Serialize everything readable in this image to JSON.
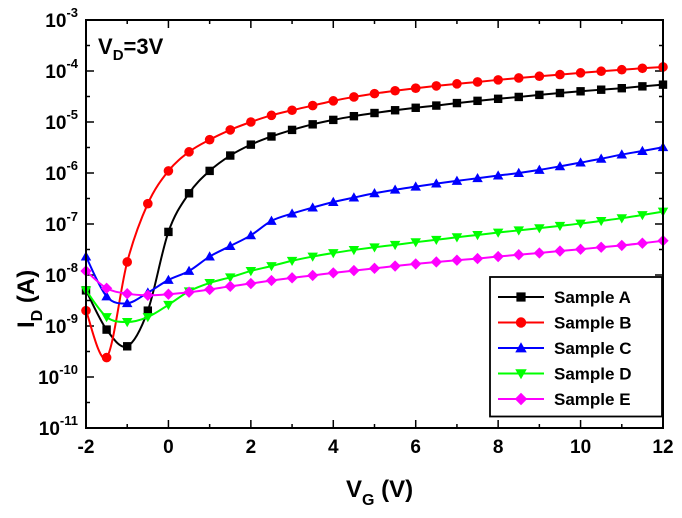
{
  "chart_data": {
    "type": "line",
    "yscale": "log",
    "xlabel": "V",
    "xlabel_sub": "G",
    "xlabel_unit": " (V)",
    "ylabel": "I",
    "ylabel_sub": "D",
    "ylabel_unit": " (A)",
    "annotation": {
      "main": "V",
      "sub": "D",
      "rest": "=3V"
    },
    "xlim": [
      -2,
      12
    ],
    "ylim": [
      1e-11,
      0.001
    ],
    "xticks": [
      -2,
      0,
      2,
      4,
      6,
      8,
      10,
      12
    ],
    "xtick_labels": [
      "-2",
      "0",
      "2",
      "4",
      "6",
      "8",
      "10",
      "12"
    ],
    "yticks": [
      {
        "base": "10",
        "exp": "-11"
      },
      {
        "base": "10",
        "exp": "-10"
      },
      {
        "base": "10",
        "exp": "-9"
      },
      {
        "base": "10",
        "exp": "-8"
      },
      {
        "base": "10",
        "exp": "-7"
      },
      {
        "base": "10",
        "exp": "-6"
      },
      {
        "base": "10",
        "exp": "-5"
      },
      {
        "base": "10",
        "exp": "-4"
      },
      {
        "base": "10",
        "exp": "-3"
      }
    ],
    "grid": false,
    "legend_position": "bottom-right",
    "x": [
      -2.0,
      -1.5,
      -1.0,
      -0.5,
      0.0,
      0.5,
      1.0,
      1.5,
      2.0,
      2.5,
      3.0,
      3.5,
      4.0,
      4.5,
      5.0,
      5.5,
      6.0,
      6.5,
      7.0,
      7.5,
      8.0,
      8.5,
      9.0,
      9.5,
      10.0,
      10.5,
      11.0,
      11.5,
      12.0
    ],
    "series": [
      {
        "name": "Sample A",
        "color": "#000000",
        "marker": "square",
        "values": [
          5e-09,
          8.5e-10,
          4e-10,
          2e-09,
          7e-08,
          4e-07,
          1.1e-06,
          2.2e-06,
          3.6e-06,
          5.2e-06,
          7e-06,
          9e-06,
          1.1e-05,
          1.3e-05,
          1.5e-05,
          1.7e-05,
          1.9e-05,
          2.1e-05,
          2.35e-05,
          2.6e-05,
          2.85e-05,
          3.1e-05,
          3.4e-05,
          3.7e-05,
          4e-05,
          4.3e-05,
          4.6e-05,
          5e-05,
          5.4e-05
        ]
      },
      {
        "name": "Sample B",
        "color": "#ff0000",
        "marker": "circle",
        "values": [
          2e-09,
          2.4e-10,
          1.8e-08,
          2.5e-07,
          1.1e-06,
          2.6e-06,
          4.5e-06,
          7e-06,
          1e-05,
          1.35e-05,
          1.7e-05,
          2.1e-05,
          2.6e-05,
          3.1e-05,
          3.6e-05,
          4.1e-05,
          4.6e-05,
          5.1e-05,
          5.6e-05,
          6.1e-05,
          6.7e-05,
          7.3e-05,
          7.9e-05,
          8.5e-05,
          9.2e-05,
          9.9e-05,
          0.000106,
          0.000113,
          0.00012
        ]
      },
      {
        "name": "Sample C",
        "color": "#0000ff",
        "marker": "triangle-up",
        "values": [
          2.3e-08,
          3.8e-09,
          2.8e-09,
          4.5e-09,
          8e-09,
          1.2e-08,
          2.3e-08,
          3.7e-08,
          6e-08,
          1.15e-07,
          1.6e-07,
          2.1e-07,
          2.7e-07,
          3.3e-07,
          4e-07,
          4.7e-07,
          5.4e-07,
          6.2e-07,
          7e-07,
          7.9e-07,
          8.9e-07,
          1e-06,
          1.15e-06,
          1.35e-06,
          1.6e-06,
          1.9e-06,
          2.3e-06,
          2.7e-06,
          3.2e-06
        ]
      },
      {
        "name": "Sample D",
        "color": "#00ff00",
        "marker": "triangle-down",
        "values": [
          5e-09,
          1.5e-09,
          1.2e-09,
          1.5e-09,
          2.6e-09,
          4.8e-09,
          7e-09,
          9e-09,
          1.2e-08,
          1.5e-08,
          1.9e-08,
          2.3e-08,
          2.7e-08,
          3.1e-08,
          3.5e-08,
          3.9e-08,
          4.4e-08,
          4.9e-08,
          5.5e-08,
          6.1e-08,
          6.8e-08,
          7.5e-08,
          8.3e-08,
          9.2e-08,
          1.02e-07,
          1.15e-07,
          1.3e-07,
          1.5e-07,
          1.75e-07
        ]
      },
      {
        "name": "Sample E",
        "color": "#ff00ff",
        "marker": "diamond",
        "values": [
          1.2e-08,
          5.5e-09,
          4.3e-09,
          4e-09,
          4.2e-09,
          4.6e-09,
          5.2e-09,
          6e-09,
          6.8e-09,
          7.8e-09,
          8.8e-09,
          9.8e-09,
          1.1e-08,
          1.22e-08,
          1.35e-08,
          1.5e-08,
          1.65e-08,
          1.8e-08,
          1.95e-08,
          2.1e-08,
          2.3e-08,
          2.5e-08,
          2.7e-08,
          2.95e-08,
          3.2e-08,
          3.5e-08,
          3.8e-08,
          4.2e-08,
          4.7e-08
        ]
      }
    ]
  }
}
